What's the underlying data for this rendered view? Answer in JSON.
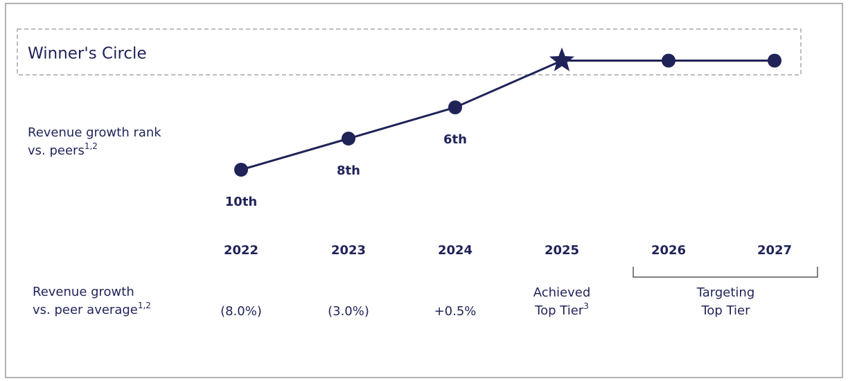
{
  "chart_data": {
    "type": "line",
    "title": "Winner's Circle",
    "y_label": {
      "lines": [
        "Revenue growth rank",
        "vs. peers"
      ],
      "superscript": "1,2"
    },
    "categories": [
      "2022",
      "2023",
      "2024",
      "2025",
      "2026",
      "2027"
    ],
    "values": [
      10,
      8,
      6,
      3,
      3,
      3
    ],
    "value_labels": [
      "10th",
      "8th",
      "6th",
      null,
      null,
      null
    ],
    "markers": [
      "circle",
      "circle",
      "circle",
      "star",
      "circle",
      "circle"
    ],
    "color": "#1f2358",
    "ylim": [
      10,
      3
    ],
    "peer_growth": {
      "label": {
        "lines": [
          "Revenue growth",
          "vs. peer average"
        ],
        "superscript": "1,2"
      },
      "values": [
        -8.0,
        -3.0,
        0.5,
        null,
        null,
        null
      ],
      "value_labels": [
        "(8.0%)",
        "(3.0%)",
        "+0.5%",
        null,
        null,
        null
      ],
      "negative_color": "#e53935",
      "positive_color": "#2e8b3a"
    },
    "achieved": {
      "lines": [
        "Achieved",
        "Top Tier"
      ],
      "superscript": "3",
      "color": "#2e8b3a"
    },
    "target": {
      "lines": [
        "Targeting",
        "Top Tier"
      ]
    }
  }
}
